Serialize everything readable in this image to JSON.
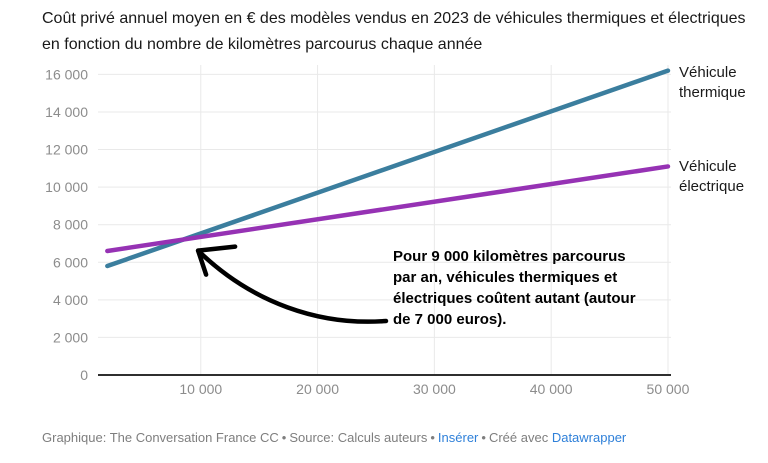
{
  "chart_data": {
    "type": "line",
    "title": "Coût privé annuel moyen en € des modèles vendus en 2023 de véhicules thermiques et électriques en fonction du nombre de kilomètres parcourus chaque année",
    "xlabel": "",
    "ylabel": "",
    "x_ticks": [
      10000,
      20000,
      30000,
      40000,
      50000
    ],
    "x_tick_labels": [
      "10 000",
      "20 000",
      "30 000",
      "40 000",
      "50 000"
    ],
    "y_ticks": [
      0,
      2000,
      4000,
      6000,
      8000,
      10000,
      12000,
      14000,
      16000
    ],
    "y_tick_labels": [
      "0",
      "2 000",
      "4 000",
      "6 000",
      "8 000",
      "10 000",
      "12 000",
      "14 000",
      "16 000"
    ],
    "xlim": [
      1200,
      50260
    ],
    "ylim": [
      0,
      16500
    ],
    "grid": true,
    "legend_position": "right-of-line-ends",
    "series": [
      {
        "name": "Véhicule thermique",
        "color": "#3b7e9e",
        "x": [
          2000,
          50000
        ],
        "y": [
          5800,
          16200
        ]
      },
      {
        "name": "Véhicule électrique",
        "color": "#9632b4",
        "x": [
          2000,
          50000
        ],
        "y": [
          6600,
          11100
        ]
      }
    ],
    "annotation": {
      "text": "Pour 9 000 kilomètres parcourus par an, véhicules thermiques et électriques coûtent autant (autour de 7 000 euros).",
      "lines": [
        "Pour 9 000 kilomètres parcourus",
        "par an, véhicules thermiques et",
        "électriques coûtent autant (autour",
        "de 7 000 euros)."
      ],
      "point": {
        "km": 9000,
        "eur": 7100
      },
      "arrow_color": "#000000"
    },
    "colors": {
      "gridline": "#e9e9e9",
      "axis_line": "#2f2f2f",
      "tick_label": "#8c8c8c"
    }
  },
  "footer": {
    "credit": "Graphique: The Conversation France CC",
    "separator": "•",
    "source": "Source: Calculs auteurs",
    "embed_link": "Insérer",
    "created_with": "Créé avec",
    "tool_link": "Datawrapper",
    "link_color": "#2f80d9"
  }
}
